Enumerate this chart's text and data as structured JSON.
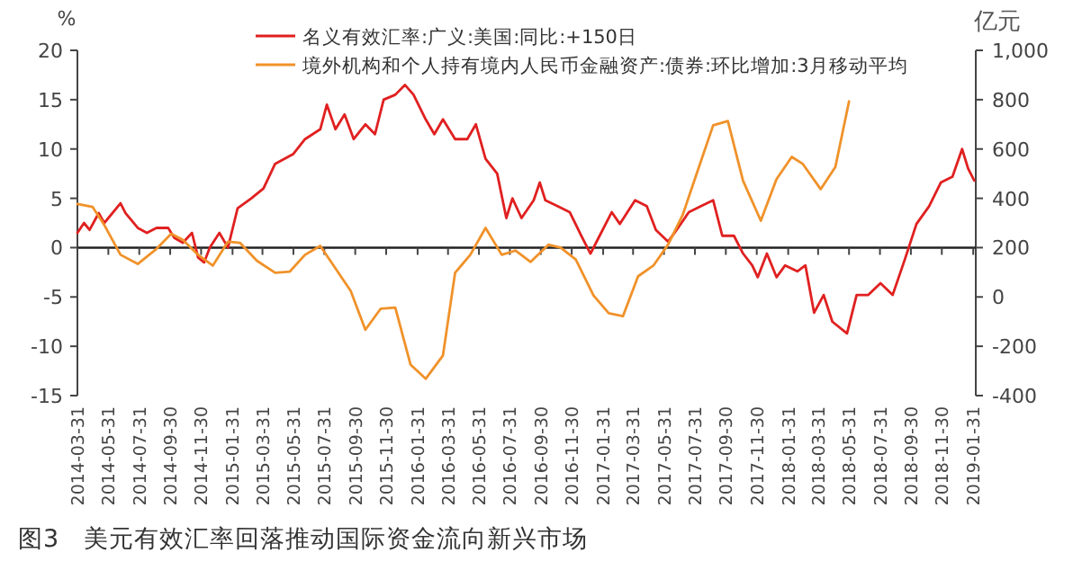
{
  "chart_data": {
    "type": "line",
    "title": "图3　美元有效汇率回落推动国际资金流向新兴市场",
    "ylabel": "%",
    "y2label": "亿元",
    "legend": "top",
    "marker": "none",
    "line_style": "solid",
    "xlim": [
      "2014-03-31",
      "2019-02-05"
    ],
    "xticks": [
      "2014-03-31",
      "2014-05-31",
      "2014-07-31",
      "2014-09-30",
      "2014-11-30",
      "2015-01-31",
      "2015-03-31",
      "2015-05-31",
      "2015-07-31",
      "2015-09-30",
      "2015-11-30",
      "2016-01-31",
      "2016-03-31",
      "2016-05-31",
      "2016-07-31",
      "2016-09-30",
      "2016-11-30",
      "2017-01-31",
      "2017-03-31",
      "2017-05-31",
      "2017-07-31",
      "2017-09-30",
      "2017-11-30",
      "2018-01-31",
      "2018-03-31",
      "2018-05-31",
      "2018-07-31",
      "2018-09-30",
      "2018-11-30",
      "2019-01-31"
    ],
    "ylim": [
      -15,
      20
    ],
    "yticks": [
      -15,
      -10,
      -5,
      0,
      5,
      10,
      15,
      20
    ],
    "y2lim": [
      -400,
      1000
    ],
    "y2ticks": [
      -400,
      -200,
      0,
      200,
      400,
      600,
      800,
      {
        "value": 1000,
        "label": "1,000"
      }
    ],
    "series": [
      {
        "name": "名义有效汇率:广义:美国:同比:+150日",
        "color": "#e02020",
        "x": [
          "2014-03-31",
          "2014-04-13",
          "2014-04-24",
          "2014-05-12",
          "2014-05-23",
          "2014-06-24",
          "2014-07-04",
          "2014-07-28",
          "2014-08-15",
          "2014-09-03",
          "2014-09-26",
          "2014-10-08",
          "2014-10-25",
          "2014-11-12",
          "2014-11-24",
          "2014-12-06",
          "2014-12-17",
          "2015-01-05",
          "2015-01-22",
          "2015-02-10",
          "2015-03-09",
          "2015-04-02",
          "2015-04-25",
          "2015-05-31",
          "2015-06-23",
          "2015-07-23",
          "2015-08-05",
          "2015-08-22",
          "2015-09-09",
          "2015-09-27",
          "2015-10-20",
          "2015-11-08",
          "2015-11-25",
          "2015-12-18",
          "2016-01-06",
          "2016-01-23",
          "2016-02-16",
          "2016-03-04",
          "2016-03-21",
          "2016-04-14",
          "2016-05-08",
          "2016-05-25",
          "2016-06-13",
          "2016-07-06",
          "2016-07-24",
          "2016-08-05",
          "2016-08-23",
          "2016-09-16",
          "2016-09-28",
          "2016-10-09",
          "2016-11-02",
          "2016-11-26",
          "2016-12-19",
          "2017-01-06",
          "2017-01-24",
          "2017-02-17",
          "2017-03-05",
          "2017-04-04",
          "2017-04-27",
          "2017-05-15",
          "2017-06-08",
          "2017-06-25",
          "2017-07-19",
          "2017-08-12",
          "2017-09-05",
          "2017-09-23",
          "2017-10-16",
          "2017-11-03",
          "2017-11-21",
          "2017-12-02",
          "2017-12-20",
          "2018-01-08",
          "2018-01-25",
          "2018-02-18",
          "2018-03-06",
          "2018-03-23",
          "2018-04-11",
          "2018-04-28",
          "2018-05-27",
          "2018-06-15",
          "2018-07-08",
          "2018-08-01",
          "2018-08-25",
          "2018-09-18",
          "2018-10-11",
          "2018-11-05",
          "2018-11-28",
          "2018-12-21",
          "2019-01-09",
          "2019-01-21",
          "2019-02-02"
        ],
        "values": [
          1.5,
          2.5,
          1.8,
          3.5,
          2.5,
          4.5,
          3.5,
          2,
          1.5,
          2,
          2,
          1,
          0.5,
          1.5,
          -1,
          -1.5,
          0,
          1.5,
          0,
          4,
          5,
          6,
          8.5,
          9.5,
          11,
          12,
          14.5,
          12,
          13.5,
          11,
          12.5,
          11.5,
          15,
          15.5,
          16.5,
          15.5,
          13,
          11.5,
          13,
          11,
          11,
          12.5,
          9,
          7.5,
          3,
          5,
          3,
          4.8,
          6.6,
          4.8,
          4.2,
          3.6,
          1.2,
          -0.6,
          1.2,
          3.6,
          2.4,
          4.8,
          4.2,
          1.8,
          0.6,
          1.8,
          3.6,
          4.2,
          4.8,
          1.2,
          1.2,
          -0.6,
          -1.8,
          -3,
          -0.6,
          -3,
          -1.8,
          -2.4,
          -1.8,
          -6.6,
          -4.8,
          -7.5,
          -8.7,
          -4.8,
          -4.8,
          -3.6,
          -4.8,
          -1.2,
          2.4,
          4.2,
          6.6,
          7.2,
          10,
          8,
          6.8
        ]
      },
      {
        "name": "境外机构和个人持有境内人民币金融资产:债券:环比增加:3月移动平均",
        "color": "#f0922a",
        "axis": "y2",
        "x": [
          "2014-03-31",
          "2014-04-30",
          "2014-05-23",
          "2014-06-24",
          "2014-07-28",
          "2014-09-03",
          "2014-10-02",
          "2014-10-25",
          "2014-11-24",
          "2014-12-23",
          "2015-01-22",
          "2015-02-15",
          "2015-03-20",
          "2015-04-25",
          "2015-05-24",
          "2015-06-23",
          "2015-07-23",
          "2015-08-16",
          "2015-09-21",
          "2015-10-20",
          "2015-11-19",
          "2015-12-18",
          "2016-01-17",
          "2016-02-16",
          "2016-03-21",
          "2016-04-14",
          "2016-05-14",
          "2016-06-13",
          "2016-07-15",
          "2016-08-11",
          "2016-09-10",
          "2016-10-15",
          "2016-11-08",
          "2016-12-08",
          "2017-01-12",
          "2017-02-11",
          "2017-03-11",
          "2017-04-10",
          "2017-05-10",
          "2017-06-08",
          "2017-07-07",
          "2017-08-06",
          "2017-09-05",
          "2017-10-04",
          "2017-11-03",
          "2017-12-08",
          "2018-01-08",
          "2018-02-07",
          "2018-03-01",
          "2018-04-05",
          "2018-05-04",
          "2018-05-31"
        ],
        "values": [
          377,
          365,
          292,
          171,
          134,
          195,
          256,
          232,
          171,
          127,
          224,
          219,
          147,
          98,
          103,
          171,
          207,
          134,
          25,
          -133,
          -48,
          -43,
          -274,
          -332,
          -237,
          98,
          171,
          280,
          171,
          188,
          142,
          212,
          200,
          152,
          6,
          -66,
          -78,
          84,
          127,
          212,
          333,
          515,
          696,
          713,
          471,
          309,
          478,
          568,
          539,
          437,
          527,
          793
        ]
      }
    ]
  }
}
